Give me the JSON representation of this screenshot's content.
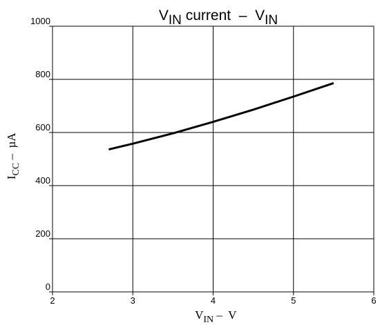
{
  "chart_data": {
    "type": "line",
    "title": {
      "main": "V",
      "main_sub": "IN",
      "middle": " current  –  V",
      "end_sub": "IN"
    },
    "xlabel": {
      "main": "V",
      "sub": "IN",
      "rest": " –  V"
    },
    "ylabel": {
      "main": "I",
      "sub": "CC",
      "rest": " –  µA"
    },
    "xlim": [
      2,
      6
    ],
    "ylim": [
      0,
      1000
    ],
    "x_ticks": [
      2,
      3,
      4,
      5,
      6
    ],
    "y_ticks": [
      0,
      200,
      400,
      600,
      800,
      1000
    ],
    "x_tick_labels": [
      "2",
      "3",
      "4",
      "5",
      "6"
    ],
    "y_tick_labels": [
      "0",
      "200",
      "400",
      "600",
      "800",
      "1000"
    ],
    "grid": true,
    "series": [
      {
        "x": [
          2.7,
          3.0,
          3.5,
          4.0,
          4.5,
          5.0,
          5.5
        ],
        "y": [
          536,
          558,
          597,
          640,
          686,
          735,
          786
        ]
      }
    ]
  }
}
